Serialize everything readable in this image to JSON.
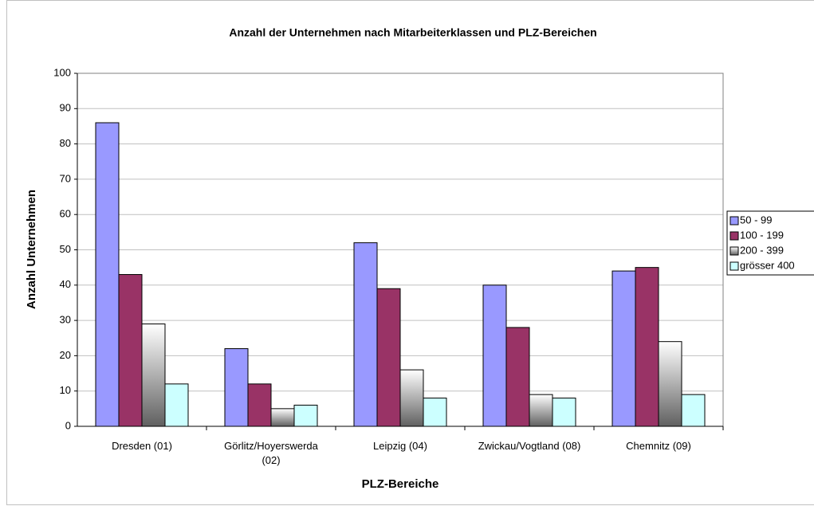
{
  "chart_data": {
    "type": "bar",
    "title": "Anzahl der Unternehmen nach Mitarbeiterklassen und PLZ-Bereichen",
    "x_label": "PLZ-Bereiche",
    "y_label": "Anzahl Unternehmen",
    "categories": [
      "Dresden (01)",
      "Görlitz/Hoyerswerda (02)",
      "Leipzig (04)",
      "Zwickau/Vogtland (08)",
      "Chemnitz (09)"
    ],
    "series": [
      {
        "name": "50 - 99",
        "color": "#9999ff",
        "values": [
          86,
          22,
          52,
          40,
          44
        ]
      },
      {
        "name": "100 - 199",
        "color": "#993366",
        "values": [
          43,
          12,
          39,
          28,
          45
        ]
      },
      {
        "name": "200 - 399",
        "color": "#606060",
        "gradient": true,
        "values": [
          29,
          5,
          16,
          9,
          24
        ]
      },
      {
        "name": "grösser 400",
        "color": "#ccffff",
        "values": [
          12,
          6,
          8,
          8,
          9
        ]
      }
    ],
    "ylim": [
      0,
      100
    ],
    "yticks": [
      0,
      10,
      20,
      30,
      40,
      50,
      60,
      70,
      80,
      90,
      100
    ],
    "grid": true,
    "legend": "right"
  }
}
